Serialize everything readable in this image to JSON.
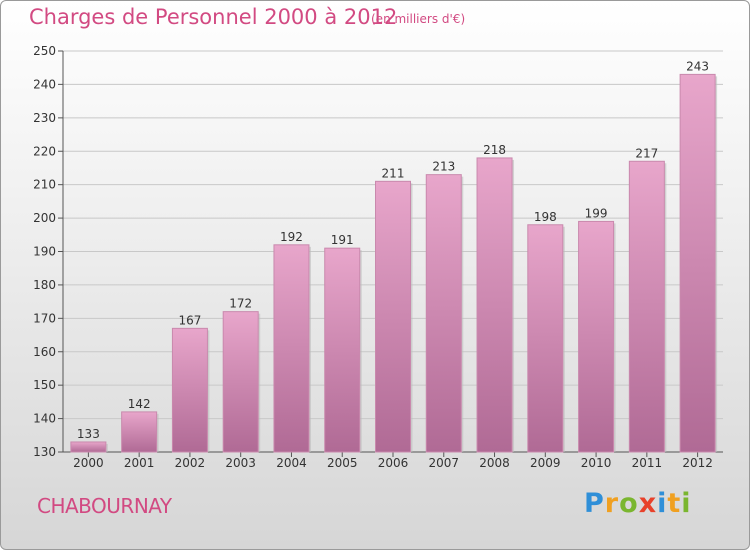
{
  "header": {
    "title": "Charges de Personnel 2000 à 2012",
    "unit": "(en milliers d'€)"
  },
  "footer": {
    "place": "CHABOURNAY",
    "logo": "Proxiti"
  },
  "colors": {
    "title": "#d24a82",
    "bar_top": "#e8a6cb",
    "bar_bottom": "#b06a95"
  },
  "chart_data": {
    "type": "bar",
    "title": "Charges de Personnel 2000 à 2012",
    "subtitle": "(en milliers d'€)",
    "categories": [
      "2000",
      "2001",
      "2002",
      "2003",
      "2004",
      "2005",
      "2006",
      "2007",
      "2008",
      "2009",
      "2010",
      "2011",
      "2012"
    ],
    "values": [
      133,
      142,
      167,
      172,
      192,
      191,
      211,
      213,
      218,
      198,
      199,
      217,
      243
    ],
    "ylim": [
      130,
      250
    ],
    "yticks": [
      130,
      140,
      150,
      160,
      170,
      180,
      190,
      200,
      210,
      220,
      230,
      240,
      250
    ],
    "grid": true,
    "xlabel": "",
    "ylabel": ""
  }
}
